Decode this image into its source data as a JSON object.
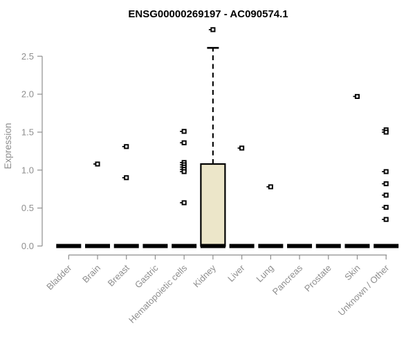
{
  "title": "ENSG00000269197 - AC090574.1",
  "chart_data": {
    "type": "boxplot",
    "title": "ENSG00000269197 - AC090574.1",
    "xlabel": "",
    "ylabel": "Expression",
    "ylim": [
      0,
      2.9
    ],
    "yticks": [
      0.0,
      0.5,
      1.0,
      1.5,
      2.0,
      2.5
    ],
    "grid": false,
    "legend": false,
    "categories": [
      "Bladder",
      "Brain",
      "Breast",
      "Gastric",
      "Hematopoietic cells",
      "Kidney",
      "Liver",
      "Lung",
      "Pancreas",
      "Prostate",
      "Skin",
      "Unknown / Other"
    ],
    "boxes": [
      {
        "category": "Bladder",
        "q1": 0,
        "median": 0,
        "q3": 0,
        "whisker_low": 0,
        "whisker_high": 0,
        "outliers": []
      },
      {
        "category": "Brain",
        "q1": 0,
        "median": 0,
        "q3": 0,
        "whisker_low": 0,
        "whisker_high": 0,
        "outliers": [
          1.08
        ]
      },
      {
        "category": "Breast",
        "q1": 0,
        "median": 0,
        "q3": 0,
        "whisker_low": 0,
        "whisker_high": 0,
        "outliers": [
          1.31,
          0.9
        ]
      },
      {
        "category": "Gastric",
        "q1": 0,
        "median": 0,
        "q3": 0,
        "whisker_low": 0,
        "whisker_high": 0,
        "outliers": []
      },
      {
        "category": "Hematopoietic cells",
        "q1": 0,
        "median": 0,
        "q3": 0,
        "whisker_low": 0,
        "whisker_high": 0,
        "outliers": [
          1.51,
          1.36,
          1.1,
          1.07,
          1.04,
          1.01,
          0.98,
          0.57
        ]
      },
      {
        "category": "Kidney",
        "q1": 0,
        "median": 0,
        "q3": 1.08,
        "whisker_low": 0,
        "whisker_high": 2.61,
        "outliers": [
          2.85
        ]
      },
      {
        "category": "Liver",
        "q1": 0,
        "median": 0,
        "q3": 0,
        "whisker_low": 0,
        "whisker_high": 0,
        "outliers": [
          1.29
        ]
      },
      {
        "category": "Lung",
        "q1": 0,
        "median": 0,
        "q3": 0,
        "whisker_low": 0,
        "whisker_high": 0,
        "outliers": [
          0.78
        ]
      },
      {
        "category": "Pancreas",
        "q1": 0,
        "median": 0,
        "q3": 0,
        "whisker_low": 0,
        "whisker_high": 0,
        "outliers": []
      },
      {
        "category": "Prostate",
        "q1": 0,
        "median": 0,
        "q3": 0,
        "whisker_low": 0,
        "whisker_high": 0,
        "outliers": []
      },
      {
        "category": "Skin",
        "q1": 0,
        "median": 0,
        "q3": 0,
        "whisker_low": 0,
        "whisker_high": 0,
        "outliers": [
          1.97
        ]
      },
      {
        "category": "Unknown / Other",
        "q1": 0,
        "median": 0,
        "q3": 0,
        "whisker_low": 0,
        "whisker_high": 0,
        "outliers": [
          1.53,
          1.5,
          0.98,
          0.82,
          0.67,
          0.51,
          0.35
        ]
      }
    ],
    "colors": {
      "box_fill": "#ece6c9",
      "box_border": "#000000",
      "median_bar": "#000000",
      "outlier": "#000000",
      "axis": "#8e8e8e",
      "title": "#000000"
    }
  }
}
